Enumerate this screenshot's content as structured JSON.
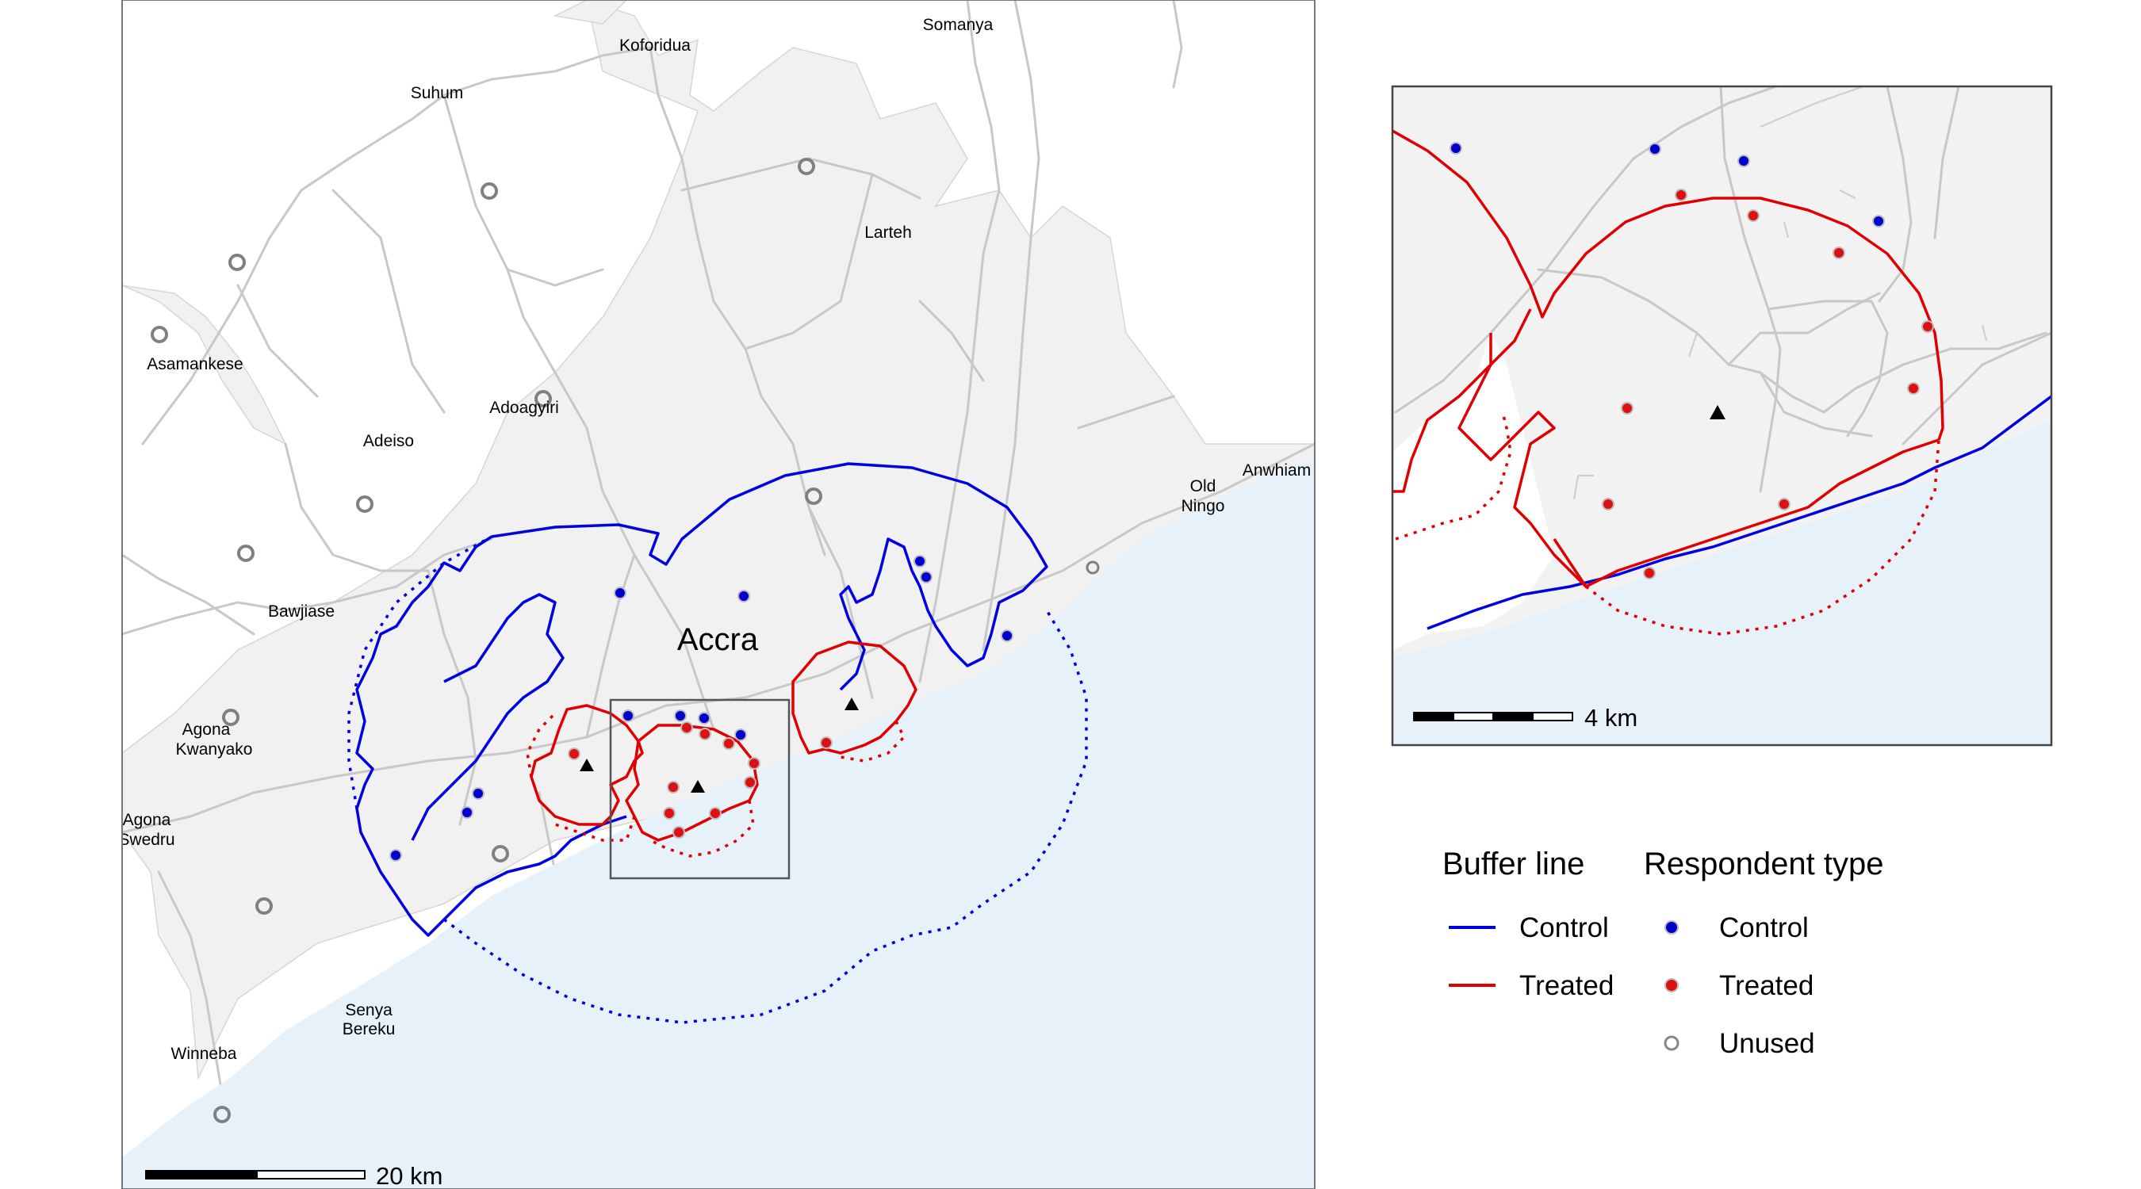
{
  "main_map": {
    "city_label": "Accra",
    "place_labels": [
      {
        "text": "Koforidua"
      },
      {
        "text": "Somanya"
      },
      {
        "text": "Suhum"
      },
      {
        "text": "Larteh"
      },
      {
        "text": "Asamankese"
      },
      {
        "text": "Adoagyiri"
      },
      {
        "text": "Adeiso"
      },
      {
        "text": "Old"
      },
      {
        "text": "Ningo"
      },
      {
        "text": "Anwhiam"
      },
      {
        "text": "Bawjiase"
      },
      {
        "text": "Agona"
      },
      {
        "text": "Kwanyako"
      },
      {
        "text": "Agona"
      },
      {
        "text": "Swedru"
      },
      {
        "text": "Senya"
      },
      {
        "text": "Bereku"
      },
      {
        "text": "Winneba"
      }
    ],
    "scale_label": "20 km"
  },
  "inset_map": {
    "scale_label": "4 km"
  },
  "legend": {
    "buffer_title": "Buffer line",
    "respondent_title": "Respondent type",
    "buffer_items": [
      {
        "label": "Control",
        "color": "#0000e0"
      },
      {
        "label": "Treated",
        "color": "#e00000"
      }
    ],
    "respondent_items": [
      {
        "label": "Control",
        "color": "#0000cc",
        "symbol": "filled-circle"
      },
      {
        "label": "Treated",
        "color": "#dd1111",
        "symbol": "filled-circle"
      },
      {
        "label": "Unused",
        "color": "#888888",
        "symbol": "hollow-circle"
      }
    ]
  },
  "colors": {
    "sea": "#e6f1f9",
    "urban": "#f2f2f2",
    "roads": "#c8c8c8",
    "control": "#0000e0",
    "treated": "#e00000"
  }
}
